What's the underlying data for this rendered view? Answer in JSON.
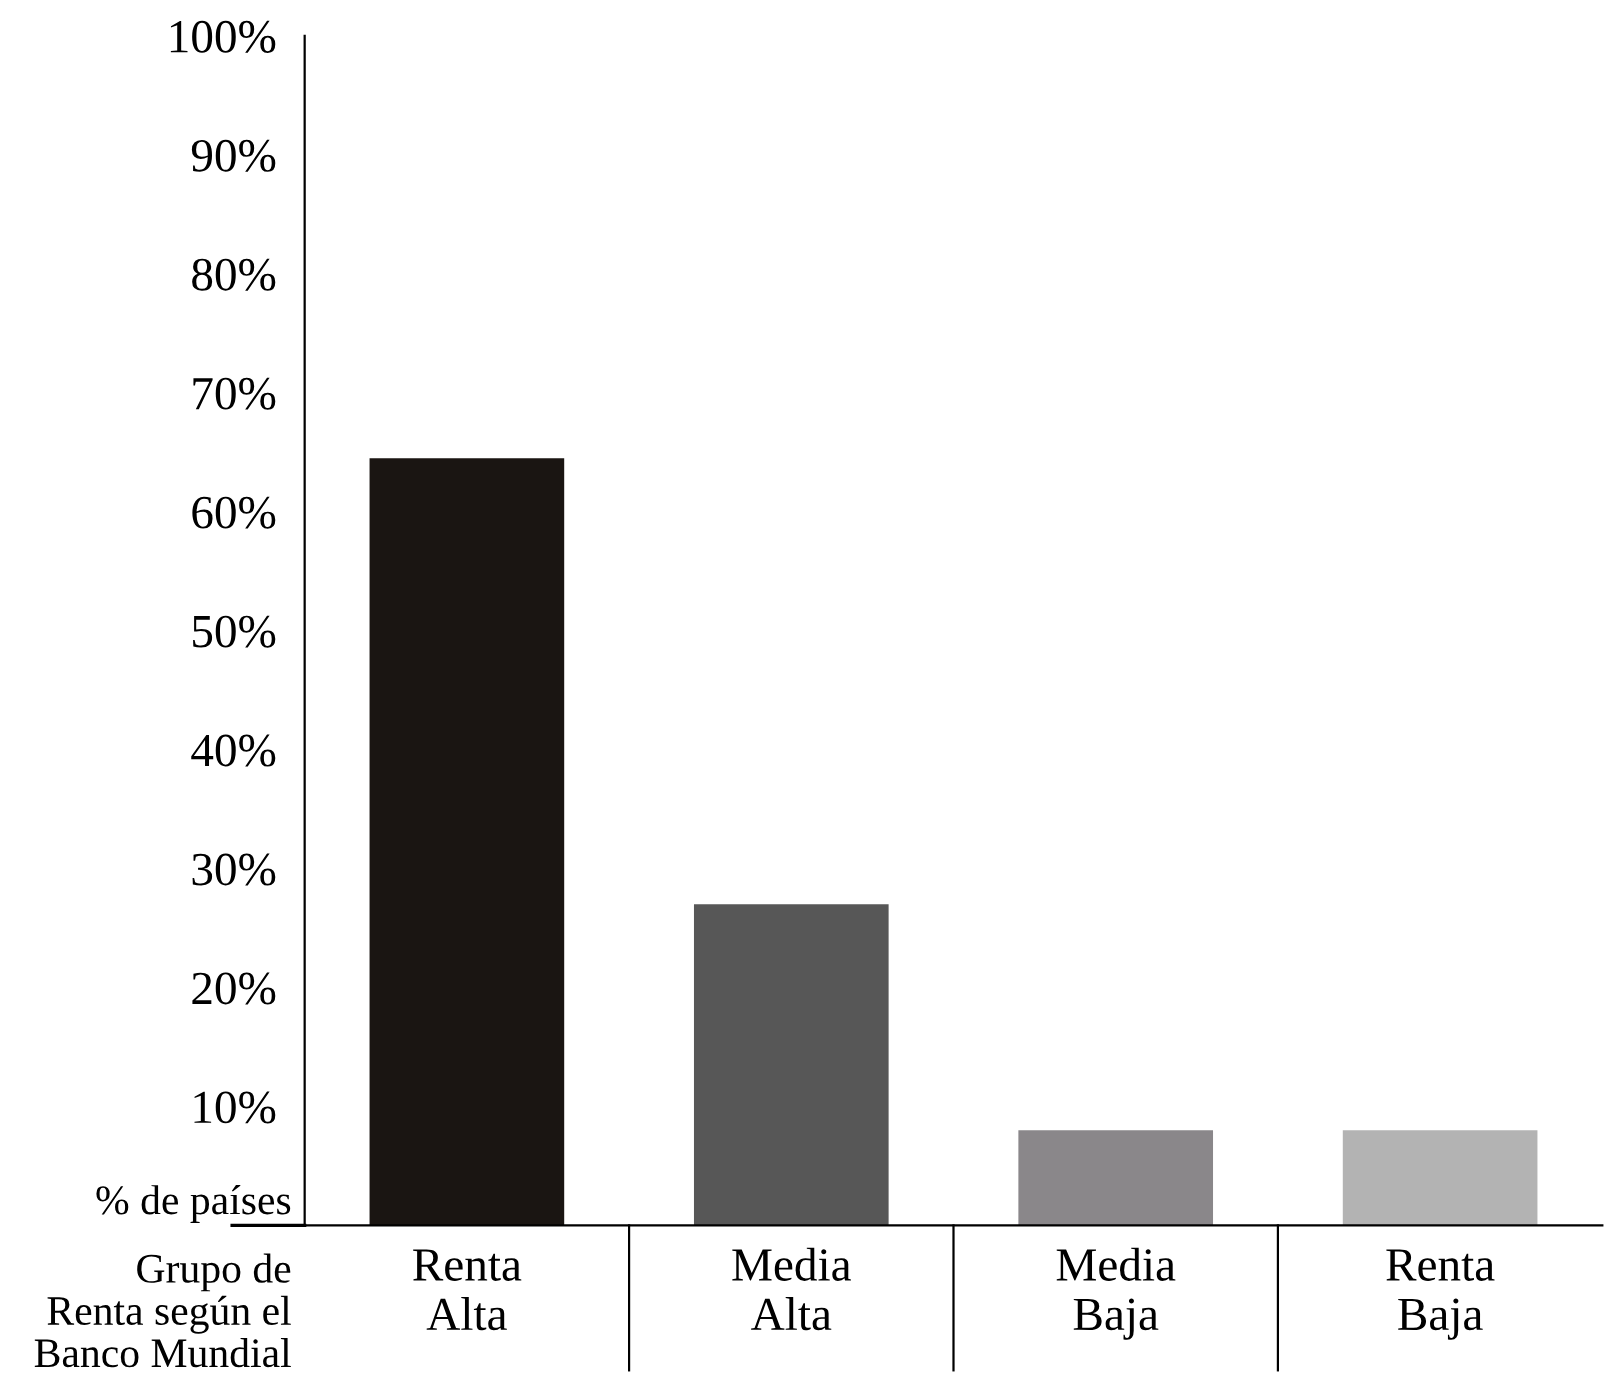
{
  "chart_data": {
    "type": "bar",
    "categories": [
      "Renta\nAlta",
      "Media\nAlta",
      "Media\nBaja",
      "Renta\nBaja"
    ],
    "values": [
      64.5,
      27,
      8,
      8
    ],
    "colors": [
      "#1a1512",
      "#575757",
      "#8a878a",
      "#b3b3b3"
    ],
    "ylabel": "% de países",
    "xlabel": "Grupo de\nRenta según el\nBanco Mundial",
    "ylim": [
      0,
      100
    ],
    "yticks": [
      {
        "value": 10,
        "label": "10%"
      },
      {
        "value": 20,
        "label": "20%"
      },
      {
        "value": 30,
        "label": "30%"
      },
      {
        "value": 40,
        "label": "40%"
      },
      {
        "value": 50,
        "label": "50%"
      },
      {
        "value": 60,
        "label": "60%"
      },
      {
        "value": 70,
        "label": "70%"
      },
      {
        "value": 80,
        "label": "80%"
      },
      {
        "value": 90,
        "label": "90%"
      },
      {
        "value": 100,
        "label": "100%"
      }
    ],
    "grid": false,
    "legend": false
  }
}
